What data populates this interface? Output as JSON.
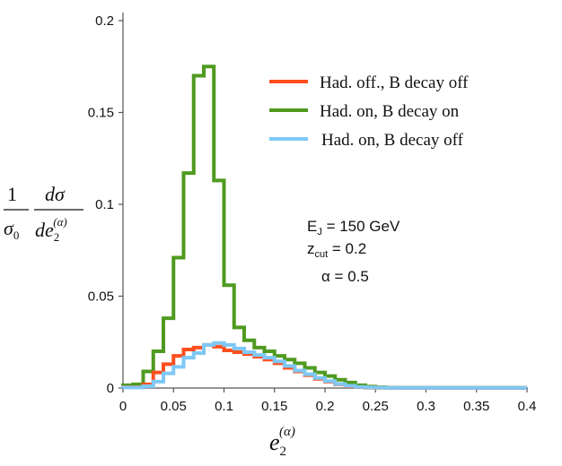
{
  "chart_data": {
    "type": "line",
    "style": "step-histogram",
    "xlabel": "e2(α)",
    "ylabel": "1/σ0 dσ/de2(α)",
    "xlim": [
      0,
      0.4
    ],
    "ylim": [
      0,
      0.2
    ],
    "x_ticks": [
      "0",
      "0.05",
      "0.1",
      "0.15",
      "0.2",
      "0.25",
      "0.3",
      "0.35",
      "0.4"
    ],
    "y_ticks": [
      "0",
      "0.05",
      "0.1",
      "0.15",
      "0.2"
    ],
    "bin_edges": [
      0.0,
      0.01,
      0.02,
      0.03,
      0.04,
      0.05,
      0.06,
      0.07,
      0.08,
      0.09,
      0.1,
      0.11,
      0.12,
      0.13,
      0.14,
      0.15,
      0.16,
      0.17,
      0.18,
      0.19,
      0.2,
      0.21,
      0.22,
      0.23,
      0.24,
      0.25,
      0.26,
      0.27,
      0.28,
      0.29,
      0.3,
      0.31,
      0.32,
      0.33,
      0.34,
      0.35,
      0.36,
      0.37,
      0.38,
      0.39,
      0.4
    ],
    "series": [
      {
        "name": "Had. off., B decay off",
        "color": "#ff4f1f",
        "values": [
          0.0005,
          0.0005,
          0.002,
          0.0085,
          0.013,
          0.0175,
          0.021,
          0.022,
          0.0235,
          0.0225,
          0.0205,
          0.0195,
          0.0185,
          0.017,
          0.0155,
          0.0135,
          0.011,
          0.009,
          0.007,
          0.005,
          0.0035,
          0.002,
          0.001,
          0.0005,
          0.0002,
          0.0001,
          0.0001,
          0.0001,
          0.0001,
          0.0001,
          0.0001,
          0.0001,
          0.0001,
          0.0001,
          0.0001,
          0.0001,
          0.0001,
          0.0001,
          0.0001,
          0.0001
        ]
      },
      {
        "name": "Had. on, B decay on",
        "color": "#4f9a1f",
        "values": [
          0.0015,
          0.002,
          0.009,
          0.02,
          0.038,
          0.071,
          0.117,
          0.17,
          0.175,
          0.113,
          0.056,
          0.033,
          0.026,
          0.022,
          0.02,
          0.0175,
          0.0155,
          0.0135,
          0.011,
          0.0085,
          0.0065,
          0.0045,
          0.003,
          0.0015,
          0.0008,
          0.0004,
          0.0002,
          0.0001,
          0.0001,
          0.0001,
          0.0001,
          0.0001,
          0.0001,
          0.0001,
          0.0001,
          0.0001,
          0.0001,
          0.0001,
          0.0001,
          0.0001
        ]
      },
      {
        "name": "Had. on, B decay off",
        "color": "#7ec8f5",
        "values": [
          0.0003,
          0.0003,
          0.001,
          0.0035,
          0.008,
          0.0115,
          0.0165,
          0.019,
          0.0235,
          0.0245,
          0.0235,
          0.0215,
          0.0195,
          0.018,
          0.0165,
          0.0145,
          0.012,
          0.0095,
          0.0075,
          0.0055,
          0.0038,
          0.0022,
          0.0012,
          0.0006,
          0.0003,
          0.0002,
          0.0001,
          0.0001,
          0.0001,
          0.0001,
          0.0001,
          0.0001,
          0.0001,
          0.0001,
          0.0001,
          0.0001,
          0.0001,
          0.0001,
          0.0001,
          0.0001
        ]
      }
    ],
    "legend": {
      "position": "top-right",
      "entries": [
        "Had. off., B decay off",
        "Had. on, B decay on",
        "Had. on, B decay off"
      ]
    },
    "annotations": {
      "energy": {
        "main": "E",
        "sub": "J",
        "rest": " = 150 GeV"
      },
      "zcut": {
        "main": "z",
        "sub": "cut",
        "rest": " = 0.2"
      },
      "alpha": "α = 0.5"
    },
    "ylabel_parts": {
      "one": "1",
      "sigma0": "σ",
      "sigma0_sub": "0",
      "dsigma": "dσ",
      "de2": "de",
      "sub2": "2",
      "sup_alpha": "(α)"
    },
    "xlabel_parts": {
      "e": "e",
      "sub2": "2",
      "sup_alpha": "(α)"
    }
  }
}
